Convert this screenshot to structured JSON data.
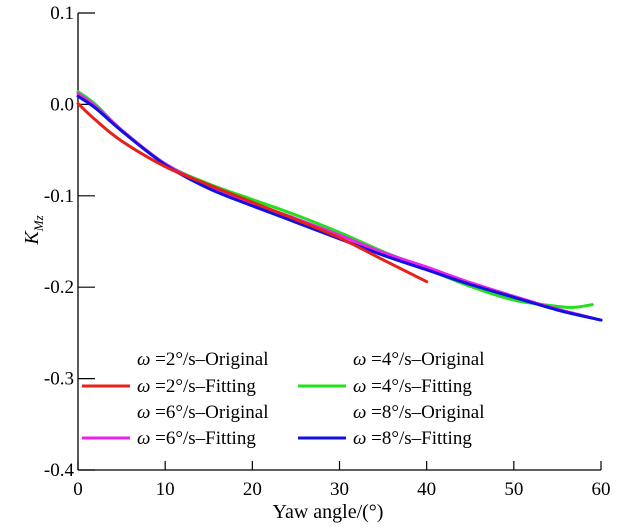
{
  "chart_data": {
    "type": "line",
    "title": "",
    "xlabel": "Yaw angle/(°)",
    "ylabel_main": "K",
    "ylabel_sub": "Mz",
    "xlim": [
      0,
      60
    ],
    "ylim": [
      -0.4,
      0.1
    ],
    "xticks": [
      0,
      10,
      20,
      30,
      40,
      50,
      60
    ],
    "xtick_labels": [
      "0",
      "10",
      "20",
      "30",
      "40",
      "50",
      "60"
    ],
    "yticks": [
      0.1,
      0.0,
      -0.1,
      -0.2,
      -0.3,
      -0.4
    ],
    "ytick_labels": [
      "0.1",
      "0.0",
      "-0.1",
      "-0.2",
      "-0.3",
      "-0.4"
    ],
    "grid": false,
    "legend_position": "bottom-left",
    "legend": [
      {
        "symbol": "ω",
        "label": "=2°/s–Original",
        "color": null
      },
      {
        "symbol": "ω",
        "label": "=4°/s–Original",
        "color": null
      },
      {
        "symbol": "ω",
        "label": "=2°/s–Fitting",
        "color": "#e8201a"
      },
      {
        "symbol": "ω",
        "label": "=4°/s–Fitting",
        "color": "#22e01a"
      },
      {
        "symbol": "ω",
        "label": "=6°/s–Original",
        "color": null
      },
      {
        "symbol": "ω",
        "label": "=8°/s–Original",
        "color": null
      },
      {
        "symbol": "ω",
        "label": "=6°/s–Fitting",
        "color": "#ee20ee"
      },
      {
        "symbol": "ω",
        "label": "=8°/s–Fitting",
        "color": "#1010e0"
      }
    ],
    "series": [
      {
        "name": "ω=4°/s–Fitting",
        "color": "#22e01a",
        "x": [
          0,
          2,
          5,
          10,
          15,
          20,
          25,
          30,
          35,
          40,
          45,
          50,
          55,
          57,
          59
        ],
        "y": [
          0.014,
          0.0,
          -0.028,
          -0.065,
          -0.087,
          -0.104,
          -0.121,
          -0.14,
          -0.161,
          -0.18,
          -0.199,
          -0.214,
          -0.221,
          -0.222,
          -0.219
        ]
      },
      {
        "name": "ω=6°/s–Fitting",
        "color": "#ee20ee",
        "x": [
          0,
          2,
          5,
          10,
          15,
          20,
          25,
          30,
          35,
          40,
          45,
          50,
          55,
          60
        ],
        "y": [
          0.012,
          -0.002,
          -0.028,
          -0.065,
          -0.089,
          -0.108,
          -0.125,
          -0.143,
          -0.162,
          -0.178,
          -0.195,
          -0.21,
          -0.224,
          -0.236
        ]
      },
      {
        "name": "ω=8°/s–Fitting",
        "color": "#1010e0",
        "x": [
          0,
          2,
          5,
          10,
          15,
          20,
          25,
          30,
          35,
          40,
          45,
          50,
          55,
          60
        ],
        "y": [
          0.009,
          -0.004,
          -0.029,
          -0.066,
          -0.092,
          -0.111,
          -0.129,
          -0.147,
          -0.165,
          -0.181,
          -0.197,
          -0.211,
          -0.225,
          -0.236
        ]
      },
      {
        "name": "ω=2°/s–Fitting",
        "color": "#e8201a",
        "x": [
          0,
          2,
          5,
          10,
          15,
          20,
          25,
          30,
          35,
          40
        ],
        "y": [
          0.001,
          -0.017,
          -0.04,
          -0.068,
          -0.088,
          -0.107,
          -0.126,
          -0.146,
          -0.17,
          -0.194
        ]
      }
    ]
  }
}
